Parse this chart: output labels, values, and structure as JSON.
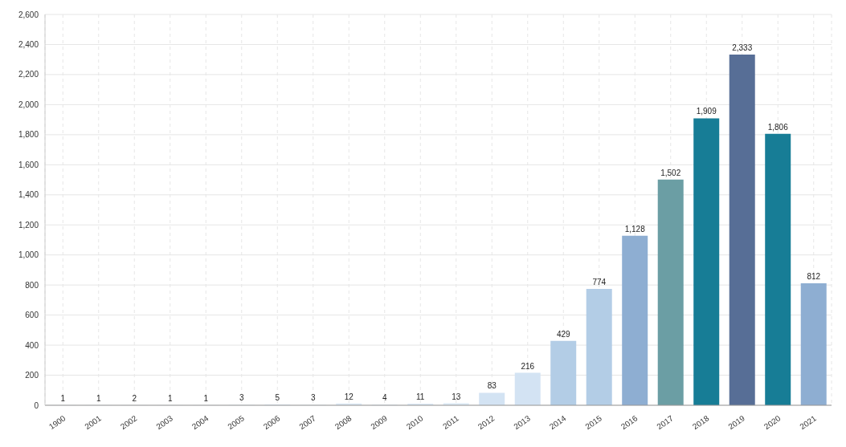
{
  "chart_data": {
    "type": "bar",
    "categories": [
      "1900",
      "2001",
      "2002",
      "2003",
      "2004",
      "2005",
      "2006",
      "2007",
      "2008",
      "2009",
      "2010",
      "2011",
      "2012",
      "2013",
      "2014",
      "2015",
      "2016",
      "2017",
      "2018",
      "2019",
      "2020",
      "2021"
    ],
    "values": [
      1,
      1,
      2,
      1,
      1,
      3,
      5,
      3,
      12,
      4,
      11,
      13,
      83,
      216,
      429,
      774,
      1128,
      1502,
      1909,
      2333,
      1806,
      812
    ],
    "value_labels": [
      "1",
      "1",
      "2",
      "1",
      "1",
      "3",
      "5",
      "3",
      "12",
      "4",
      "11",
      "13",
      "83",
      "216",
      "429",
      "774",
      "1,128",
      "1,502",
      "1,909",
      "2,333",
      "1,806",
      "812"
    ],
    "colors": [
      "#dce9f5",
      "#dce9f5",
      "#dce9f5",
      "#dce9f5",
      "#dce9f5",
      "#dce9f5",
      "#dce9f5",
      "#dce9f5",
      "#dce9f5",
      "#dce9f5",
      "#dce9f5",
      "#dce9f5",
      "#d3e3f3",
      "#d3e3f3",
      "#b3cde6",
      "#b3cde6",
      "#8eaed2",
      "#6b9ea4",
      "#177d96",
      "#576e96",
      "#177d96",
      "#8eaed2"
    ],
    "ylim": [
      0,
      2600
    ],
    "yticks": [
      0,
      200,
      400,
      600,
      800,
      {
        "value": 1000,
        "label": "1,000"
      },
      {
        "value": 1200,
        "label": "1,200"
      },
      {
        "value": 1400,
        "label": "1,400"
      },
      {
        "value": 1600,
        "label": "1,600"
      },
      {
        "value": 1800,
        "label": "1,800"
      },
      {
        "value": 2000,
        "label": "2,000"
      },
      {
        "value": 2200,
        "label": "2,200"
      },
      {
        "value": 2400,
        "label": "2,400"
      },
      {
        "value": 2600,
        "label": "2,600"
      }
    ],
    "grid": true
  }
}
